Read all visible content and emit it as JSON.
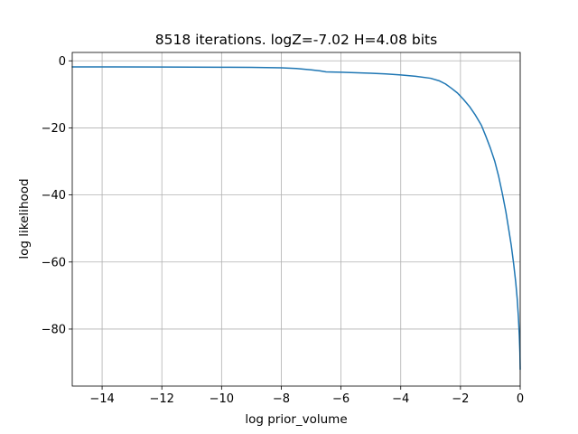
{
  "chart_data": {
    "type": "line",
    "title": "8518 iterations. logZ=-7.02 H=4.08 bits",
    "xlabel": "log prior_volume",
    "ylabel": "log likelihood",
    "xlim": [
      -15.0,
      0.0
    ],
    "ylim": [
      -97.0,
      2.5
    ],
    "xticks": [
      {
        "value": -14,
        "label": "−14"
      },
      {
        "value": -12,
        "label": "−12"
      },
      {
        "value": -10,
        "label": "−10"
      },
      {
        "value": -8,
        "label": "−8"
      },
      {
        "value": -6,
        "label": "−6"
      },
      {
        "value": -4,
        "label": "−4"
      },
      {
        "value": -2,
        "label": "−2"
      },
      {
        "value": 0,
        "label": "0"
      }
    ],
    "yticks": [
      {
        "value": 0,
        "label": "0"
      },
      {
        "value": -20,
        "label": "−20"
      },
      {
        "value": -40,
        "label": "−40"
      },
      {
        "value": -60,
        "label": "−60"
      },
      {
        "value": -80,
        "label": "−80"
      }
    ],
    "grid": true,
    "legend": "none",
    "series": [
      {
        "color": "#1f77b4",
        "points": [
          [
            -15.0,
            -1.8
          ],
          [
            -12.0,
            -1.85
          ],
          [
            -10.0,
            -1.9
          ],
          [
            -9.0,
            -1.95
          ],
          [
            -8.0,
            -2.1
          ],
          [
            -7.5,
            -2.3
          ],
          [
            -7.0,
            -2.7
          ],
          [
            -6.7,
            -3.0
          ],
          [
            -6.5,
            -3.3
          ],
          [
            -6.0,
            -3.4
          ],
          [
            -5.0,
            -3.7
          ],
          [
            -4.5,
            -3.9
          ],
          [
            -4.0,
            -4.2
          ],
          [
            -3.5,
            -4.6
          ],
          [
            -3.0,
            -5.2
          ],
          [
            -2.7,
            -6.0
          ],
          [
            -2.5,
            -6.9
          ],
          [
            -2.3,
            -8.2
          ],
          [
            -2.1,
            -9.6
          ],
          [
            -1.9,
            -11.5
          ],
          [
            -1.7,
            -13.6
          ],
          [
            -1.5,
            -16.2
          ],
          [
            -1.3,
            -19.2
          ],
          [
            -1.15,
            -22.5
          ],
          [
            -1.0,
            -26.0
          ],
          [
            -0.85,
            -30.0
          ],
          [
            -0.72,
            -34.5
          ],
          [
            -0.6,
            -39.5
          ],
          [
            -0.48,
            -45.0
          ],
          [
            -0.38,
            -50.5
          ],
          [
            -0.3,
            -55.0
          ],
          [
            -0.22,
            -60.5
          ],
          [
            -0.15,
            -66.0
          ],
          [
            -0.1,
            -71.0
          ],
          [
            -0.06,
            -76.5
          ],
          [
            -0.03,
            -82.0
          ],
          [
            -0.01,
            -87.0
          ],
          [
            0.0,
            -92.0
          ]
        ]
      }
    ]
  }
}
